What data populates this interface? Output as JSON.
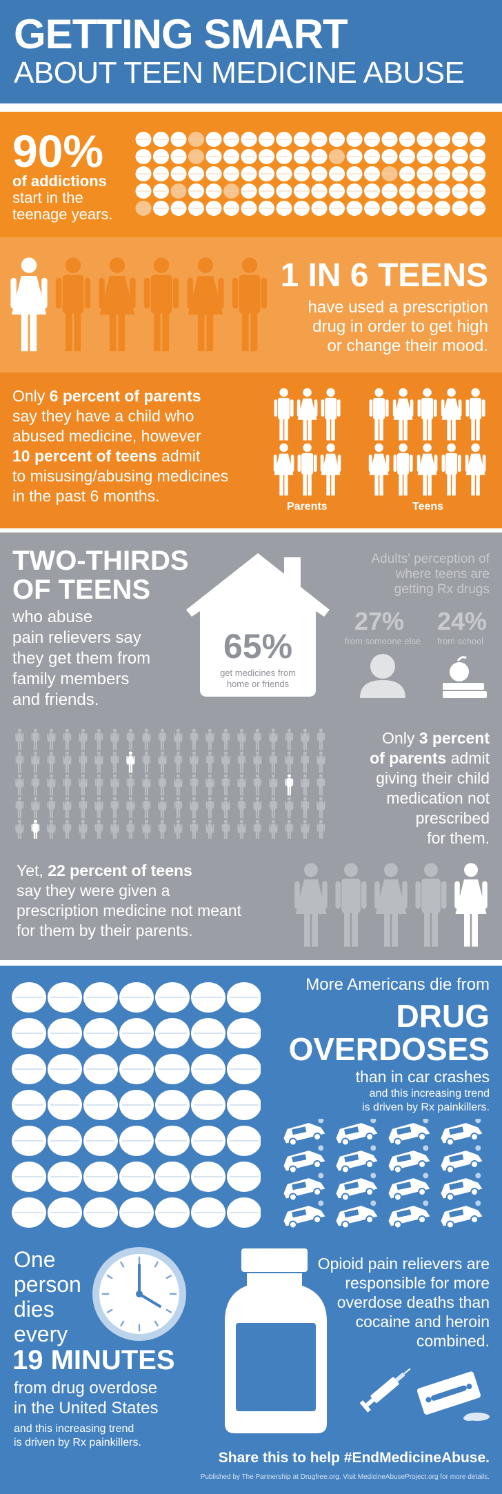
{
  "header": {
    "title_line1": "GETTING SMART",
    "title_line2": "ABOUT TEEN MEDICINE ABUSE"
  },
  "addictions": {
    "stat": "90%",
    "label_bold": "of addictions",
    "label_line2": "start in the",
    "label_line3": "teenage years.",
    "pill_total": 100,
    "pill_highlighted": 10
  },
  "one_in_six": {
    "stat": "1 IN 6 TEENS",
    "line1": "have used a prescription",
    "line2": "drug in order to get high",
    "line3": "or change their mood.",
    "highlighted_figures": 1,
    "total_figures": 6
  },
  "parents_vs_teens": {
    "line1_pre": "Only ",
    "line1_bold": "6 percent of parents",
    "line2": "say they have a child who",
    "line3": "abused medicine, however",
    "line4_bold": "10 percent of teens",
    "line4_post": " admit",
    "line5": "to misusing/abusing medicines",
    "line6": "in the past 6 months.",
    "parents_label": "Parents",
    "teens_label": "Teens",
    "parents_figures": 6,
    "teens_figures": 10
  },
  "two_thirds": {
    "heading1": "TWO-THIRDS",
    "heading2": "OF TEENS",
    "line1": "who abuse",
    "line2": "pain relievers say",
    "line3": "they get them from",
    "line4": "family members",
    "line5": "and friends.",
    "house_stat": "65%",
    "house_caption1": "get medicines from",
    "house_caption2": "home or friends",
    "perception_title1": "Adults' perception of",
    "perception_title2": "where teens are",
    "perception_title3": "getting Rx drugs",
    "someone_stat": "27%",
    "someone_label": "from someone else",
    "school_stat": "24%",
    "school_label": "from school"
  },
  "three_percent": {
    "line1_pre": "Only ",
    "line1_bold": "3 percent",
    "line2_bold": "of parents",
    "line2_post": " admit",
    "line3": "giving their child",
    "line4": "medication not",
    "line5": "prescribed",
    "line6": "for them.",
    "crowd_total": 100,
    "crowd_highlighted": 3
  },
  "twenty_two": {
    "line1_pre": "Yet, ",
    "line1_bold": "22 percent of teens",
    "line2": "say they were given a",
    "line3": "prescription medicine not meant",
    "line4": "for them by their parents.",
    "highlighted_figures": 1,
    "total_figures": 5
  },
  "overdoses": {
    "line1": "More Americans die from",
    "heading1": "DRUG",
    "heading2": "OVERDOSES",
    "line2": "than in car crashes",
    "line3": "and this increasing trend",
    "line4": "is driven by Rx painkillers.",
    "pill_count": 49,
    "car_count": 16
  },
  "nineteen_minutes": {
    "line1": "One",
    "line2": "person",
    "line3": "dies",
    "line4": "every",
    "stat": "19 MINUTES",
    "line5": "from drug overdose",
    "line6": "in the United States",
    "line7": "and this increasing trend",
    "line8": "is driven by Rx painkillers."
  },
  "opioid": {
    "line1": "Opioid pain relievers are",
    "line2": "responsible for more",
    "line3": "overdose deaths than",
    "line4": "cocaine and heroin",
    "line5": "combined."
  },
  "footer": {
    "share": "Share this to help #EndMedicineAbuse.",
    "credit": "Published by The Partnership at Drugfree.org. Visit MedicineAbuseProject.org for more details."
  },
  "colors": {
    "blue": "#3d7ab6",
    "orange": "#f28d21",
    "light_orange": "#f4a04a",
    "gray": "#9b9ea4",
    "pill_highlight": "#f6c48c"
  }
}
